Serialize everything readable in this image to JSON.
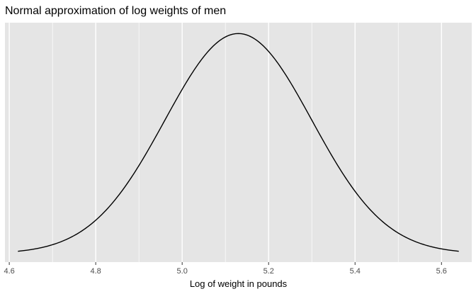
{
  "chart_data": {
    "type": "line",
    "title": "Normal approximation of log weights of men",
    "xlabel": "Log of weight in pounds",
    "ylabel": "",
    "distribution": "normal",
    "mean": 5.13,
    "sd": 0.17,
    "x_range": [
      4.62,
      5.64
    ],
    "xlim": [
      4.59,
      5.67
    ],
    "x_ticks": [
      4.6,
      4.8,
      5.0,
      5.2,
      5.4,
      5.6
    ],
    "x_tick_labels": [
      "4.6",
      "4.8",
      "5.0",
      "5.2",
      "5.4",
      "5.6"
    ],
    "y_axis_labels_shown": false,
    "grid": true,
    "panel_background": "#e5e5e5",
    "gridline_color": "#ffffff",
    "line_color": "#000000"
  }
}
